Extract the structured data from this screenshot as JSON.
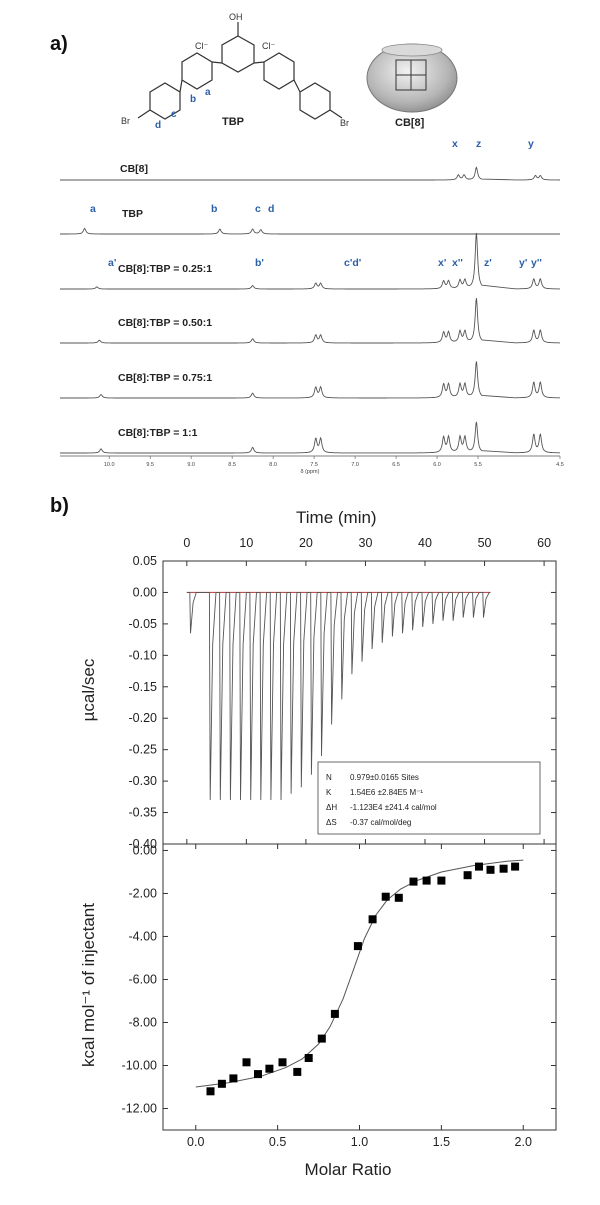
{
  "figure": {
    "panel_a_label": "a)",
    "panel_b_label": "b)"
  },
  "structures": {
    "tbp_name": "TBP",
    "cb8_name": "CB[8]",
    "oh": "OH",
    "cl": "Cl⁻",
    "br": "Br",
    "atom_labels": [
      "a",
      "b",
      "c",
      "d"
    ]
  },
  "chart_data": [
    {
      "type": "line",
      "title": "",
      "xlabel": "δ (ppm)",
      "x_reversed": true,
      "xlim": [
        10.6,
        4.5
      ],
      "x_ticks": [
        "10.0",
        "9.5",
        "9.0",
        "8.5",
        "8.0",
        "7.5",
        "7.0",
        "6.5",
        "6.0",
        "5.5",
        "4.5"
      ],
      "axis_break_between_ppm": [
        5.45,
        5.05
      ],
      "peak_labels": [
        "x",
        "z",
        "y",
        "a",
        "b",
        "c",
        "d",
        "a'",
        "b'",
        "c'd'",
        "x'",
        "x''",
        "z'",
        "y'",
        "y''"
      ],
      "series": [
        {
          "name": "CB[8]",
          "peaks": [
            {
              "ppm": 5.67,
              "h": 0.35
            },
            {
              "ppm": 5.74,
              "h": 0.35
            },
            {
              "ppm": 5.52,
              "h": 0.9
            },
            {
              "ppm": 4.8,
              "h": 0.3
            },
            {
              "ppm": 4.74,
              "h": 0.3
            }
          ]
        },
        {
          "name": "TBP",
          "peaks": [
            {
              "ppm": 10.3,
              "h": 0.4
            },
            {
              "ppm": 8.65,
              "h": 0.35
            },
            {
              "ppm": 8.25,
              "h": 0.35
            },
            {
              "ppm": 8.15,
              "h": 0.3
            }
          ]
        },
        {
          "name": "CB[8]:TBP = 0.25:1",
          "peaks": [
            {
              "ppm": 10.15,
              "h": 0.15
            },
            {
              "ppm": 8.25,
              "h": 0.25
            },
            {
              "ppm": 7.48,
              "h": 0.4
            },
            {
              "ppm": 7.42,
              "h": 0.4
            },
            {
              "ppm": 5.92,
              "h": 0.55
            },
            {
              "ppm": 5.86,
              "h": 0.55
            },
            {
              "ppm": 5.72,
              "h": 0.6
            },
            {
              "ppm": 5.66,
              "h": 0.6
            },
            {
              "ppm": 5.52,
              "h": 4.0
            },
            {
              "ppm": 4.82,
              "h": 0.7
            },
            {
              "ppm": 4.74,
              "h": 0.7
            }
          ]
        },
        {
          "name": "CB[8]:TBP = 0.50:1",
          "peaks": [
            {
              "ppm": 10.12,
              "h": 0.2
            },
            {
              "ppm": 8.25,
              "h": 0.3
            },
            {
              "ppm": 7.48,
              "h": 0.55
            },
            {
              "ppm": 7.42,
              "h": 0.55
            },
            {
              "ppm": 5.92,
              "h": 0.75
            },
            {
              "ppm": 5.86,
              "h": 0.75
            },
            {
              "ppm": 5.72,
              "h": 0.8
            },
            {
              "ppm": 5.66,
              "h": 0.8
            },
            {
              "ppm": 5.52,
              "h": 3.2
            },
            {
              "ppm": 4.82,
              "h": 0.9
            },
            {
              "ppm": 4.74,
              "h": 0.9
            }
          ]
        },
        {
          "name": "CB[8]:TBP = 0.75:1",
          "peaks": [
            {
              "ppm": 10.1,
              "h": 0.25
            },
            {
              "ppm": 8.25,
              "h": 0.35
            },
            {
              "ppm": 7.48,
              "h": 0.75
            },
            {
              "ppm": 7.42,
              "h": 0.75
            },
            {
              "ppm": 5.92,
              "h": 0.95
            },
            {
              "ppm": 5.86,
              "h": 0.95
            },
            {
              "ppm": 5.72,
              "h": 0.95
            },
            {
              "ppm": 5.66,
              "h": 0.95
            },
            {
              "ppm": 5.52,
              "h": 2.6
            },
            {
              "ppm": 4.82,
              "h": 1.1
            },
            {
              "ppm": 4.74,
              "h": 1.1
            }
          ]
        },
        {
          "name": "CB[8]:TBP = 1:1",
          "peaks": [
            {
              "ppm": 10.1,
              "h": 0.3
            },
            {
              "ppm": 8.25,
              "h": 0.4
            },
            {
              "ppm": 7.48,
              "h": 1.0
            },
            {
              "ppm": 7.42,
              "h": 1.0
            },
            {
              "ppm": 5.92,
              "h": 1.1
            },
            {
              "ppm": 5.86,
              "h": 1.1
            },
            {
              "ppm": 5.72,
              "h": 1.1
            },
            {
              "ppm": 5.66,
              "h": 1.1
            },
            {
              "ppm": 5.52,
              "h": 2.2
            },
            {
              "ppm": 4.82,
              "h": 1.3
            },
            {
              "ppm": 4.74,
              "h": 1.3
            }
          ]
        }
      ]
    },
    {
      "type": "line",
      "title": "",
      "xlabel": "Time (min)",
      "ylabel": "µcal/sec",
      "xlim": [
        -4,
        62
      ],
      "ylim": [
        -0.4,
        0.05
      ],
      "x_ticks": [
        0,
        10,
        20,
        30,
        40,
        50,
        60
      ],
      "y_ticks": [
        "0.05",
        "0.00",
        "-0.05",
        "-0.10",
        "-0.15",
        "-0.20",
        "-0.25",
        "-0.30",
        "-0.35",
        "-0.40"
      ],
      "injection_times_min": [
        0.5,
        3.8,
        5.5,
        7.2,
        8.9,
        10.6,
        12.3,
        14.0,
        15.7,
        17.4,
        19.1,
        20.8,
        22.5,
        24.2,
        25.9,
        27.6,
        29.3,
        31.0,
        32.7,
        34.4,
        36.1,
        37.8,
        39.5,
        41.2,
        42.9,
        44.6,
        46.3,
        48.0,
        49.7
      ],
      "injection_peaks_ucal_s": [
        -0.065,
        -0.33,
        -0.33,
        -0.33,
        -0.33,
        -0.33,
        -0.33,
        -0.33,
        -0.33,
        -0.32,
        -0.31,
        -0.29,
        -0.26,
        -0.21,
        -0.17,
        -0.13,
        -0.11,
        -0.09,
        -0.08,
        -0.07,
        -0.065,
        -0.06,
        -0.055,
        -0.05,
        -0.045,
        -0.045,
        -0.04,
        -0.04,
        -0.04
      ],
      "fit_table": [
        [
          "N",
          "0.979±0.0165 Sites"
        ],
        [
          "K",
          "1.54E6 ±2.84E5 M⁻¹"
        ],
        [
          "ΔH",
          "-1.123E4 ±241.4 cal/mol"
        ],
        [
          "ΔS",
          "-0.37 cal/mol/deg"
        ]
      ]
    },
    {
      "type": "scatter",
      "title": "",
      "xlabel": "Molar Ratio",
      "ylabel": "kcal mol⁻¹ of injectant",
      "xlim": [
        -0.2,
        2.2
      ],
      "ylim": [
        -13,
        0.3
      ],
      "x_ticks": [
        "0.0",
        "0.5",
        "1.0",
        "1.5",
        "2.0"
      ],
      "y_ticks": [
        "0.00",
        "-2.00",
        "-4.00",
        "-6.00",
        "-8.00",
        "-10.00",
        "-12.00"
      ],
      "series": [
        {
          "x": [
            0.09,
            0.16,
            0.23,
            0.31,
            0.38,
            0.45,
            0.53,
            0.62,
            0.69,
            0.77,
            0.85,
            0.99,
            1.08,
            1.16,
            1.24,
            1.33,
            1.41,
            1.5,
            1.66,
            1.73,
            1.8,
            1.88,
            1.95
          ],
          "y": [
            -11.2,
            -10.85,
            -10.6,
            -9.85,
            -10.4,
            -10.15,
            -9.85,
            -10.3,
            -9.65,
            -8.75,
            -7.6,
            -4.45,
            -3.2,
            -2.15,
            -2.2,
            -1.45,
            -1.4,
            -1.4,
            -1.15,
            -0.75,
            -0.9,
            -0.85,
            -0.75
          ]
        }
      ],
      "fit_curve": {
        "x": [
          0.0,
          0.2,
          0.4,
          0.55,
          0.65,
          0.75,
          0.82,
          0.9,
          0.97,
          1.03,
          1.1,
          1.17,
          1.25,
          1.35,
          1.5,
          1.7,
          1.9,
          2.0
        ],
        "y": [
          -11.0,
          -10.8,
          -10.5,
          -10.1,
          -9.7,
          -9.0,
          -8.2,
          -6.9,
          -5.4,
          -4.1,
          -3.0,
          -2.3,
          -1.8,
          -1.4,
          -1.0,
          -0.7,
          -0.5,
          -0.45
        ]
      }
    }
  ]
}
